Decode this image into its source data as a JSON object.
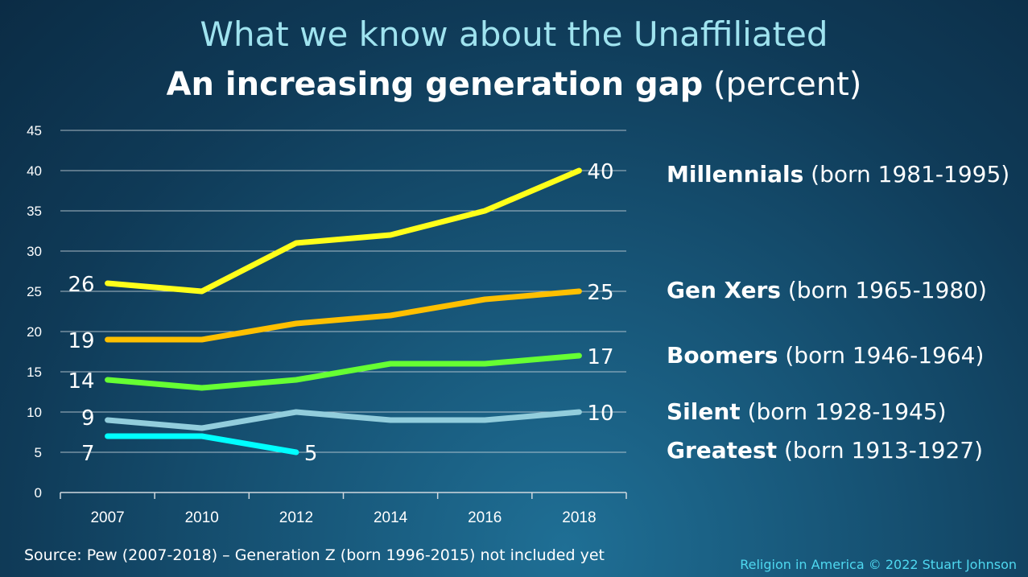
{
  "title": "What we know about the Unaffiliated",
  "subtitle_bold": "An increasing generation gap",
  "subtitle_rest": "(percent)",
  "source": "Source: Pew (2007-2018) – Generation Z (born 1996-2015) not included yet",
  "credit": "Religion in America © 2022 Stuart Johnson",
  "chart_data": {
    "type": "line",
    "categories": [
      "2007",
      "2010",
      "2012",
      "2014",
      "2016",
      "2018"
    ],
    "ylim": [
      0,
      45
    ],
    "yticks": [
      0,
      5,
      10,
      15,
      20,
      25,
      30,
      35,
      40,
      45
    ],
    "grid": true,
    "legend_placement": "right",
    "series": [
      {
        "name": "Millennials",
        "detail": "(born 1981-1995)",
        "color": "#ffff1a",
        "values": [
          26,
          25,
          31,
          32,
          35,
          40
        ],
        "start_label": "26",
        "end_label": "40"
      },
      {
        "name": "Gen Xers",
        "detail": "(born 1965-1980)",
        "color": "#ffc000",
        "values": [
          19,
          19,
          21,
          22,
          24,
          25
        ],
        "start_label": "19",
        "end_label": "25"
      },
      {
        "name": "Boomers",
        "detail": "(born 1946-1964)",
        "color": "#66ff33",
        "values": [
          14,
          13,
          14,
          16,
          16,
          17
        ],
        "start_label": "14",
        "end_label": "17"
      },
      {
        "name": "Silent",
        "detail": "(born 1928-1945)",
        "color": "#92cddc",
        "values": [
          9,
          8,
          10,
          9,
          9,
          10
        ],
        "start_label": "9",
        "end_label": "10"
      },
      {
        "name": "Greatest",
        "detail": "(born 1913-1927)",
        "color": "#00ffff",
        "values": [
          7,
          7,
          5,
          null,
          null,
          null
        ],
        "start_label": "7",
        "end_label": "5"
      }
    ]
  }
}
